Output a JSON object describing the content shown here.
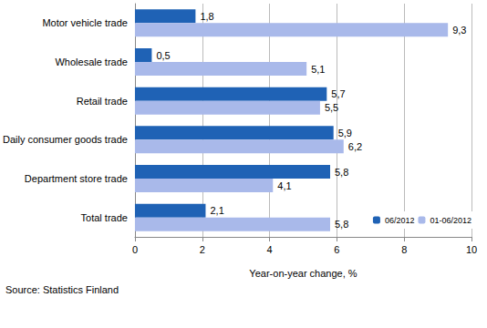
{
  "chart_data": {
    "type": "bar",
    "orientation": "horizontal",
    "categories": [
      "Motor vehicle trade",
      "Wholesale trade",
      "Retail trade",
      "Daily consumer goods trade",
      "Department store trade",
      "Total trade"
    ],
    "series": [
      {
        "name": "06/2012",
        "color": "#1f62b5",
        "values": [
          1.8,
          0.5,
          5.7,
          5.9,
          5.8,
          2.1
        ],
        "value_labels": [
          "1,8",
          "0,5",
          "5,7",
          "5,9",
          "5,8",
          "2,1"
        ]
      },
      {
        "name": "01-06/2012",
        "color": "#a9b9ea",
        "values": [
          9.3,
          5.1,
          5.5,
          6.2,
          4.1,
          5.8
        ],
        "value_labels": [
          "9,3",
          "5,1",
          "5,5",
          "6,2",
          "4,1",
          "5,8"
        ]
      }
    ],
    "x_label": "Year-on-year change, %",
    "xlim": [
      0,
      10
    ],
    "xticks": [
      0,
      2,
      4,
      6,
      8,
      10
    ],
    "grid": true,
    "legend": "lower right",
    "data_labels": true,
    "source": "Source: Statistics Finland"
  }
}
